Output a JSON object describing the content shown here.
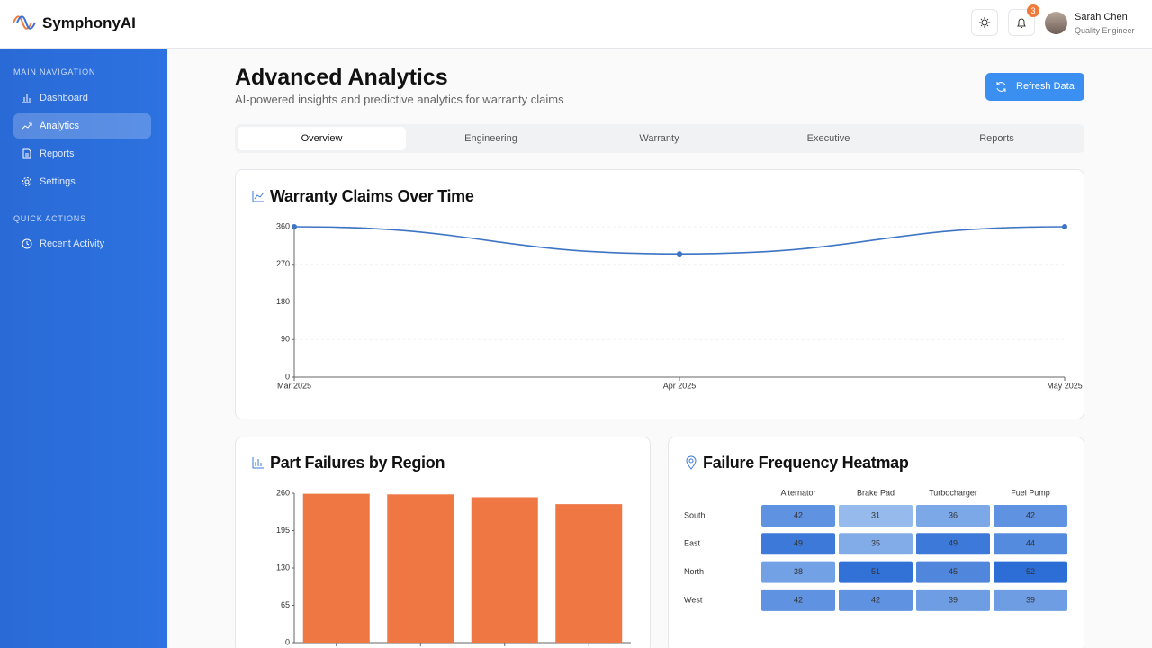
{
  "header": {
    "brand": "SymphonyAI",
    "notifications": "3",
    "user_name": "Sarah Chen",
    "user_role": "Quality Engineer"
  },
  "sidebar": {
    "sections": [
      {
        "title": "MAIN NAVIGATION",
        "items": [
          "Dashboard",
          "Analytics",
          "Reports",
          "Settings"
        ]
      },
      {
        "title": "QUICK ACTIONS",
        "items": [
          "Recent Activity"
        ]
      }
    ]
  },
  "page": {
    "title": "Advanced Analytics",
    "subtitle": "AI-powered insights and predictive analytics for warranty claims",
    "button": "Refresh Data",
    "tabs": [
      "Overview",
      "Engineering",
      "Warranty",
      "Executive",
      "Reports"
    ]
  },
  "chart_data": [
    {
      "type": "line",
      "title": "Warranty Claims Over Time",
      "x": [
        "Mar 2025",
        "Apr 2025",
        "May 2025"
      ],
      "values": [
        360,
        295,
        360
      ],
      "color": "#3d74c4",
      "ylim": [
        0,
        360
      ],
      "yticks": [
        0,
        90,
        180,
        270,
        360
      ],
      "grid": true
    },
    {
      "type": "bar",
      "title": "Part Failures by Region",
      "categories": [
        null,
        null,
        null,
        null
      ],
      "values": [
        259,
        258,
        253,
        241
      ],
      "color": "#ee7744",
      "ylim": [
        0,
        260
      ],
      "yticks": [
        0,
        65,
        130,
        195,
        260
      ]
    },
    {
      "type": "heatmap",
      "title": "Failure Frequency Heatmap",
      "columns": [
        "Alternator",
        "Brake Pad",
        "Turbocharger",
        "Fuel Pump"
      ],
      "rows": [
        "South",
        "East",
        "North",
        "West"
      ],
      "values": [
        [
          42,
          31,
          36,
          42
        ],
        [
          49,
          35,
          49,
          44
        ],
        [
          38,
          51,
          45,
          52
        ],
        [
          42,
          42,
          39,
          39
        ]
      ]
    }
  ]
}
